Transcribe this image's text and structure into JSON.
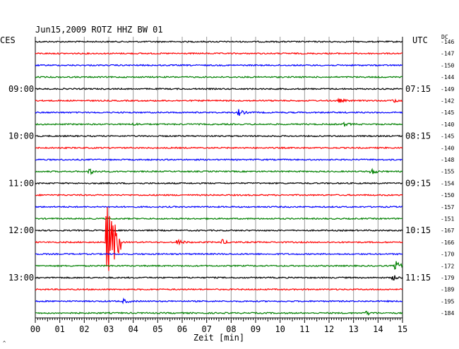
{
  "header": {
    "title": "Jun15,2009   ROTZ HHZ BW 01",
    "left_zone": "CES",
    "right_zone": "UTC",
    "dc_label": "DC"
  },
  "footer": {
    "xlabel": "Zeit [min]",
    "corner_mark": "^"
  },
  "colors": {
    "trace_cycle": [
      "#000000",
      "#ff0000",
      "#0000ff",
      "#008000"
    ],
    "grid": "#999999",
    "frame": "#000000"
  },
  "chart_data": {
    "type": "line",
    "title": "Jun15,2009   ROTZ HHZ BW 01",
    "xlabel": "Zeit [min]",
    "xlim": [
      0,
      15
    ],
    "x_ticks": [
      "00",
      "01",
      "02",
      "03",
      "04",
      "05",
      "06",
      "07",
      "08",
      "09",
      "10",
      "11",
      "12",
      "13",
      "14",
      "15"
    ],
    "rows": 24,
    "row_minutes": 15,
    "left_time_labels": [
      {
        "row": 4,
        "label": "09:00"
      },
      {
        "row": 8,
        "label": "10:00"
      },
      {
        "row": 12,
        "label": "11:00"
      },
      {
        "row": 16,
        "label": "12:00"
      },
      {
        "row": 20,
        "label": "13:00"
      }
    ],
    "right_time_labels": [
      {
        "row": 4,
        "label": "07:15"
      },
      {
        "row": 8,
        "label": "08:15"
      },
      {
        "row": 12,
        "label": "09:15"
      },
      {
        "row": 16,
        "label": "10:15"
      },
      {
        "row": 20,
        "label": "11:15"
      }
    ],
    "dc_offsets": [
      "-146",
      "-147",
      "-150",
      "-144",
      "-149",
      "-142",
      "-145",
      "-140",
      "-145",
      "-140",
      "-148",
      "-155",
      "-154",
      "-150",
      "-157",
      "-151",
      "-167",
      "-166",
      "-170",
      "-172",
      "-179",
      "-189",
      "-195",
      "-184"
    ],
    "events": [
      {
        "row": 5,
        "minute": 12.4,
        "amplitude": 3
      },
      {
        "row": 5,
        "minute": 14.6,
        "amplitude": 3
      },
      {
        "row": 6,
        "minute": 8.3,
        "amplitude": 5
      },
      {
        "row": 7,
        "minute": 4.0,
        "amplitude": 2
      },
      {
        "row": 7,
        "minute": 12.6,
        "amplitude": 3
      },
      {
        "row": 11,
        "minute": 2.2,
        "amplitude": 5
      },
      {
        "row": 11,
        "minute": 13.7,
        "amplitude": 5
      },
      {
        "row": 17,
        "minute": 2.9,
        "amplitude": 55
      },
      {
        "row": 17,
        "minute": 5.8,
        "amplitude": 5
      },
      {
        "row": 17,
        "minute": 7.6,
        "amplitude": 4
      },
      {
        "row": 19,
        "minute": 14.7,
        "amplitude": 8
      },
      {
        "row": 20,
        "minute": 14.6,
        "amplitude": 4
      },
      {
        "row": 22,
        "minute": 3.6,
        "amplitude": 3
      },
      {
        "row": 23,
        "minute": 13.5,
        "amplitude": 3
      }
    ]
  }
}
